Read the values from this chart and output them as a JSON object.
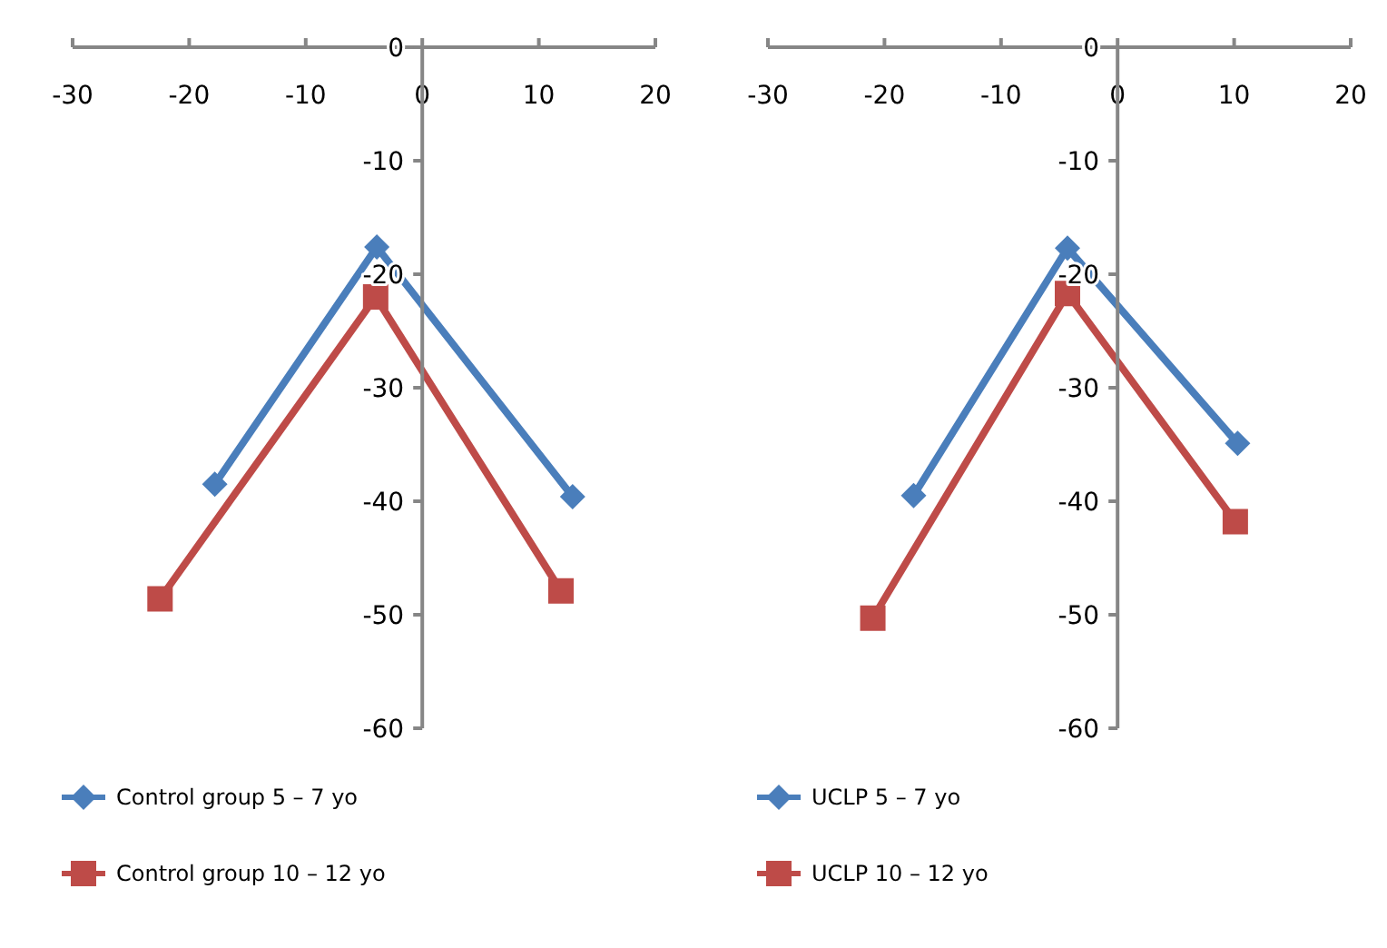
{
  "chart_data": [
    {
      "type": "line",
      "xlim": [
        -30,
        20
      ],
      "ylim": [
        -60,
        0
      ],
      "xticks": [
        -30,
        -20,
        -10,
        0,
        10,
        20
      ],
      "yticks": [
        0,
        -10,
        -20,
        -30,
        -40,
        -50,
        -60
      ],
      "grid": false,
      "legend": "bottom",
      "series": [
        {
          "name": "Control group 5 – 7 yo",
          "color": "#4a7ebb",
          "marker": "diamond",
          "x": [
            -17.8,
            -3.9,
            12.9
          ],
          "values": [
            -38.5,
            -17.6,
            -39.6
          ]
        },
        {
          "name": "Control group 10 – 12 yo",
          "color": "#be4b48",
          "marker": "square",
          "x": [
            -22.5,
            -4.0,
            11.9
          ],
          "values": [
            -48.6,
            -22.0,
            -47.9
          ]
        }
      ]
    },
    {
      "type": "line",
      "xlim": [
        -30,
        20
      ],
      "ylim": [
        -60,
        0
      ],
      "xticks": [
        -30,
        -20,
        -10,
        0,
        10,
        20
      ],
      "yticks": [
        0,
        -10,
        -20,
        -30,
        -40,
        -50,
        -60
      ],
      "grid": false,
      "legend": "bottom",
      "series": [
        {
          "name": "UCLP 5 – 7 yo",
          "color": "#4a7ebb",
          "marker": "diamond",
          "x": [
            -17.5,
            -4.3,
            10.3
          ],
          "values": [
            -39.5,
            -17.7,
            -34.9
          ]
        },
        {
          "name": "UCLP 10 – 12 yo",
          "color": "#be4b48",
          "marker": "square",
          "x": [
            -21.0,
            -4.3,
            10.1
          ],
          "values": [
            -50.3,
            -21.7,
            -41.8
          ]
        }
      ]
    }
  ]
}
